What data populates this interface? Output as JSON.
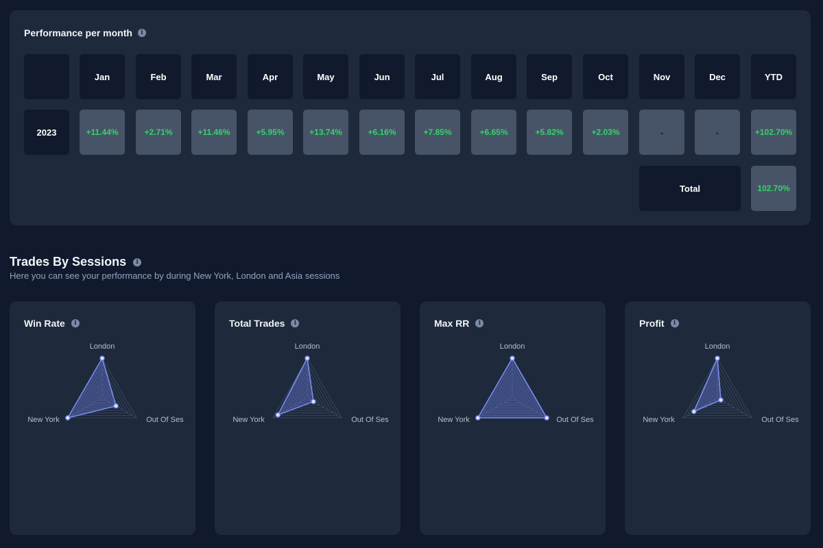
{
  "performance": {
    "title": "Performance per month",
    "info_icon": "i",
    "headers": [
      "Jan",
      "Feb",
      "Mar",
      "Apr",
      "May",
      "Jun",
      "Jul",
      "Aug",
      "Sep",
      "Oct",
      "Nov",
      "Dec",
      "YTD"
    ],
    "year": "2023",
    "values": [
      "+11.44%",
      "+2.71%",
      "+11.46%",
      "+5.95%",
      "+13.74%",
      "+6.16%",
      "+7.85%",
      "+6.65%",
      "+5.82%",
      "+2.03%",
      "-",
      "-",
      "+102.70%"
    ],
    "total_label": "Total",
    "total_value": "102.70%"
  },
  "sessions": {
    "title": "Trades By Sessions",
    "subtitle": "Here you can see your performance by during New York, London and Asia sessions",
    "info_icon": "i",
    "axis_labels": [
      "London",
      "Out Of Ses",
      "New York"
    ],
    "colors": {
      "accent": "#7b8cf0",
      "fill": "rgba(110,128,240,0.35)",
      "grid": "#3e4a60"
    },
    "cards": [
      {
        "title": "Win Rate",
        "values": [
          1.0,
          0.4,
          1.0
        ]
      },
      {
        "title": "Total Trades",
        "values": [
          1.0,
          0.18,
          0.85
        ]
      },
      {
        "title": "Max RR",
        "values": [
          1.0,
          1.0,
          1.0
        ]
      },
      {
        "title": "Profit",
        "values": [
          1.0,
          0.1,
          0.68
        ]
      }
    ]
  }
}
